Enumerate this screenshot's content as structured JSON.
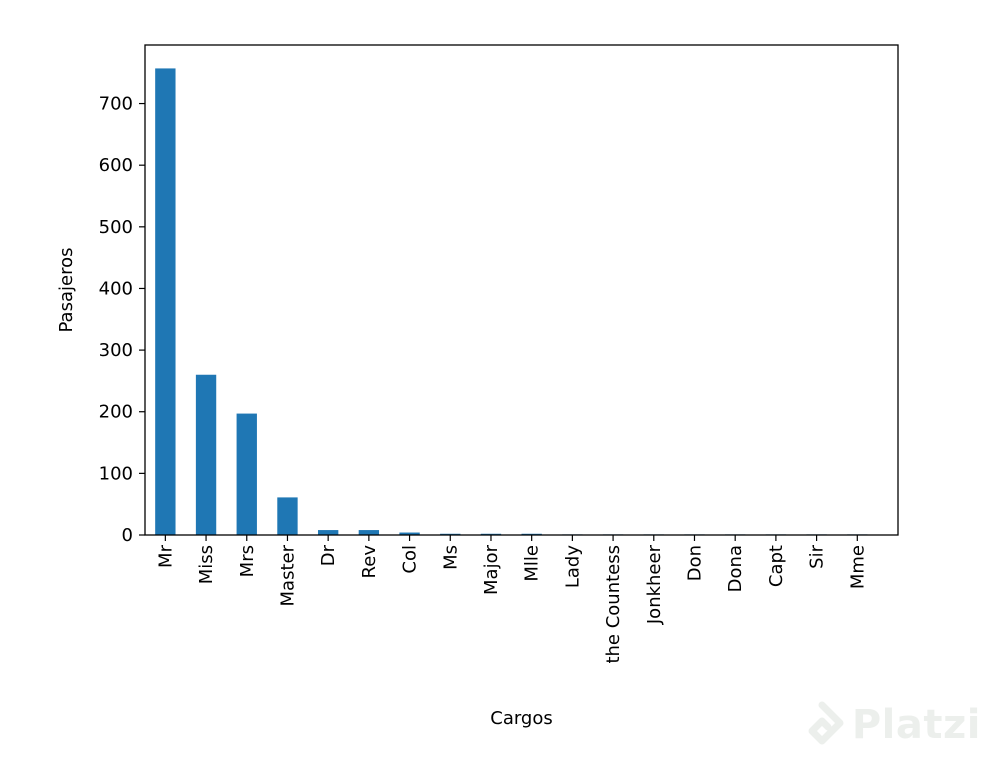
{
  "chart_data": {
    "type": "bar",
    "xlabel": "Cargos",
    "ylabel": "Pasajeros",
    "categories": [
      "Mr",
      "Miss",
      "Mrs",
      "Master",
      "Dr",
      "Rev",
      "Col",
      "Ms",
      "Major",
      "Mlle",
      "Lady",
      "the Countess",
      "Jonkheer",
      "Don",
      "Dona",
      "Capt",
      "Sir",
      "Mme"
    ],
    "values": [
      757,
      260,
      197,
      61,
      8,
      8,
      4,
      2,
      2,
      2,
      1,
      1,
      1,
      1,
      1,
      1,
      1,
      1
    ],
    "ylim": [
      0,
      795
    ],
    "yticks": [
      0,
      100,
      200,
      300,
      400,
      500,
      600,
      700
    ],
    "grid": false,
    "bar_color": "#1f77b4"
  },
  "watermark": {
    "text": "Platzi",
    "icon": "platzi-logo-icon"
  }
}
